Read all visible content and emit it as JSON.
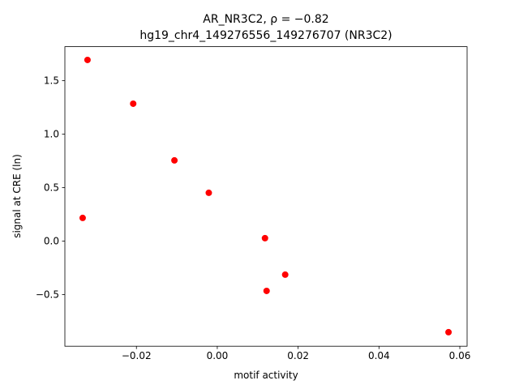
{
  "chart_data": {
    "type": "scatter",
    "title": "AR_NR3C2, ρ = −0.82",
    "subtitle": "hg19_chr4_149276556_149276707 (NR3C2)",
    "x_label": "motif activity",
    "y_label": "signal at CRE (ln)",
    "color": "#ff0000",
    "x": [
      -0.0321,
      -0.0208,
      -0.0106,
      -0.0021,
      -0.0333,
      0.0118,
      0.0168,
      0.0122,
      0.0572
    ],
    "values": [
      1.693,
      1.284,
      0.754,
      0.451,
      0.216,
      0.027,
      -0.314,
      -0.466,
      -0.852
    ],
    "xlim": [
      -0.0377,
      0.0618
    ],
    "ylim": [
      -0.983,
      1.817
    ],
    "xticks": [
      {
        "value": -0.02,
        "label": "−0.02"
      },
      {
        "value": 0,
        "label": "0.00"
      },
      0.02,
      0.04,
      0.06
    ],
    "yticks": [
      {
        "value": -0.5,
        "label": "−0.5"
      },
      {
        "value": 0,
        "label": "0.0"
      },
      0.5,
      {
        "value": 1,
        "label": "1.0"
      },
      1.5
    ]
  }
}
